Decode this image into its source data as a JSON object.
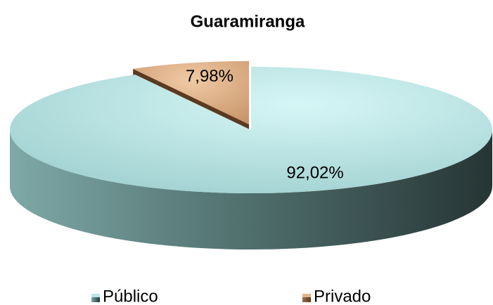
{
  "chart_data": {
    "type": "pie",
    "title": "Guaramiranga",
    "categories": [
      "Público",
      "Privado"
    ],
    "values": [
      92.02,
      7.98
    ],
    "value_labels": [
      "92,02%",
      "7,98%"
    ],
    "colors": [
      "#b8e6e6",
      "#e0b48c"
    ],
    "legend": "bottom"
  }
}
